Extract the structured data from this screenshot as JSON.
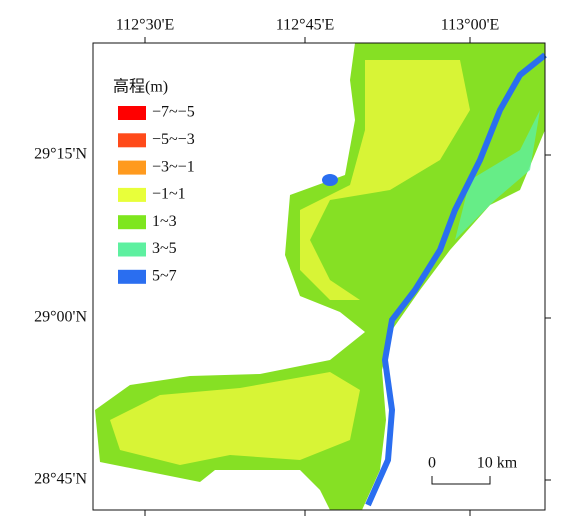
{
  "map": {
    "lon_labels": [
      "112°30'E",
      "112°45'E",
      "113°00'E"
    ],
    "lat_labels": [
      "29°15'N",
      "29°00'N",
      "28°45'N"
    ],
    "legend": {
      "title": "高程(m)",
      "items": [
        {
          "label": "−7~−5",
          "color": "#ff0000"
        },
        {
          "label": "−5~−3",
          "color": "#ff4a1a"
        },
        {
          "label": "−3~−1",
          "color": "#ff9a1e"
        },
        {
          "label": "−1~1",
          "color": "#e8ff3a"
        },
        {
          "label": "1~3",
          "color": "#7ee61e"
        },
        {
          "label": "3~5",
          "color": "#5ef0a0"
        },
        {
          "label": "5~7",
          "color": "#2a6ef0"
        }
      ]
    },
    "scale_bar": {
      "start": "0",
      "end": "10 km"
    }
  }
}
